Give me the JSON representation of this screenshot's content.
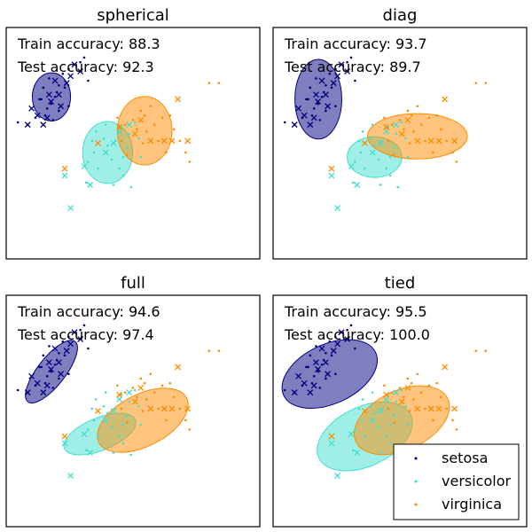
{
  "colors": {
    "setosa": "#000080",
    "versicolor": "#40e0d0",
    "virginica": "#ff8c00"
  },
  "legend": {
    "entries": [
      "setosa",
      "versicolor",
      "virginica"
    ],
    "placement": "lower-right"
  },
  "chart_data": [
    {
      "type": "scatter",
      "title": "spherical",
      "train_accuracy_label": "Train accuracy: 88.3",
      "test_accuracy_label": "Test accuracy: 92.3",
      "ellipses": [
        {
          "class": "setosa",
          "cx": 1.16,
          "cy": 3.5,
          "rx": 0.49,
          "ry": 0.52,
          "angle": 0
        },
        {
          "class": "versicolor",
          "cx": 2.6,
          "cy": 2.3,
          "rx": 0.64,
          "ry": 0.67,
          "angle": 0
        },
        {
          "class": "virginica",
          "cx": 3.55,
          "cy": 2.77,
          "rx": 0.7,
          "ry": 0.74,
          "angle": 0
        }
      ]
    },
    {
      "type": "scatter",
      "title": "diag",
      "train_accuracy_label": "Train accuracy: 93.7",
      "test_accuracy_label": "Test accuracy: 89.7",
      "ellipses": [
        {
          "class": "setosa",
          "cx": 1.16,
          "cy": 3.45,
          "rx": 0.6,
          "ry": 0.86,
          "angle": 0
        },
        {
          "class": "versicolor",
          "cx": 2.6,
          "cy": 2.2,
          "rx": 0.7,
          "ry": 0.44,
          "angle": 0
        },
        {
          "class": "virginica",
          "cx": 3.7,
          "cy": 2.65,
          "rx": 1.28,
          "ry": 0.49,
          "angle": 0
        }
      ]
    },
    {
      "type": "scatter",
      "title": "full",
      "train_accuracy_label": "Train accuracy: 94.6",
      "test_accuracy_label": "Test accuracy: 97.4",
      "ellipses": [
        {
          "class": "setosa",
          "cx": 1.16,
          "cy": 3.35,
          "rx": 0.98,
          "ry": 0.3,
          "angle": -52
        },
        {
          "class": "versicolor",
          "cx": 2.4,
          "cy": 2.0,
          "rx": 0.98,
          "ry": 0.35,
          "angle": -22
        },
        {
          "class": "virginica",
          "cx": 3.5,
          "cy": 2.3,
          "rx": 1.26,
          "ry": 0.56,
          "angle": -27
        }
      ]
    },
    {
      "type": "scatter",
      "title": "tied",
      "train_accuracy_label": "Train accuracy: 95.5",
      "test_accuracy_label": "Test accuracy: 100.0",
      "ellipses": [
        {
          "class": "setosa",
          "cx": 1.45,
          "cy": 3.3,
          "rx": 1.3,
          "ry": 0.64,
          "angle": -25
        },
        {
          "class": "versicolor",
          "cx": 2.35,
          "cy": 1.95,
          "rx": 1.3,
          "ry": 0.64,
          "angle": -25
        },
        {
          "class": "virginica",
          "cx": 3.3,
          "cy": 2.3,
          "rx": 1.3,
          "ry": 0.64,
          "angle": -25
        }
      ]
    }
  ],
  "points": {
    "train": {
      "setosa": [
        [
          0.85,
          3.45
        ],
        [
          1.0,
          3.1
        ],
        [
          1.05,
          3.25
        ],
        [
          1.1,
          3.9
        ],
        [
          1.2,
          3.0
        ],
        [
          1.25,
          3.5
        ],
        [
          1.3,
          3.6
        ],
        [
          1.35,
          3.75
        ],
        [
          1.45,
          4.0
        ],
        [
          1.5,
          3.7
        ],
        [
          1.6,
          4.1
        ],
        [
          0.55,
          2.9
        ],
        [
          0.75,
          3.05
        ],
        [
          1.15,
          3.35
        ],
        [
          0.95,
          3.7
        ],
        [
          1.35,
          3.2
        ],
        [
          1.6,
          3.3
        ],
        [
          1.9,
          4.25
        ],
        [
          2.0,
          4.35
        ],
        [
          2.1,
          3.85
        ],
        [
          0.3,
          2.95
        ],
        [
          0.9,
          3.45
        ]
      ],
      "versicolor": [
        [
          2.05,
          1.65
        ],
        [
          2.1,
          2.1
        ],
        [
          2.25,
          2.3
        ],
        [
          2.35,
          1.95
        ],
        [
          2.55,
          2.9
        ],
        [
          2.6,
          2.45
        ],
        [
          2.7,
          2.15
        ],
        [
          2.8,
          2.55
        ],
        [
          2.9,
          1.95
        ],
        [
          3.0,
          2.2
        ],
        [
          3.1,
          2.4
        ],
        [
          3.15,
          2.7
        ],
        [
          3.3,
          2.95
        ],
        [
          3.4,
          2.6
        ],
        [
          2.75,
          1.6
        ],
        [
          2.95,
          2.85
        ],
        [
          2.3,
          2.75
        ],
        [
          2.5,
          2.6
        ],
        [
          3.45,
          2.2
        ],
        [
          3.0,
          1.8
        ],
        [
          2.2,
          2.55
        ],
        [
          3.2,
          1.55
        ]
      ],
      "virginica": [
        [
          2.85,
          3.05
        ],
        [
          2.95,
          2.55
        ],
        [
          3.1,
          2.25
        ],
        [
          3.25,
          3.0
        ],
        [
          3.35,
          2.8
        ],
        [
          3.45,
          3.2
        ],
        [
          3.5,
          2.5
        ],
        [
          3.6,
          2.75
        ],
        [
          3.7,
          3.3
        ],
        [
          3.8,
          2.9
        ],
        [
          3.9,
          2.55
        ],
        [
          4.0,
          3.05
        ],
        [
          4.1,
          2.3
        ],
        [
          4.2,
          3.1
        ],
        [
          4.3,
          2.8
        ],
        [
          4.45,
          2.55
        ],
        [
          4.6,
          2.3
        ],
        [
          4.7,
          2.1
        ],
        [
          5.2,
          3.8
        ],
        [
          5.45,
          3.8
        ],
        [
          3.05,
          2.9
        ],
        [
          3.55,
          3.1
        ]
      ]
    },
    "test": {
      "setosa": [
        [
          0.55,
          2.9
        ],
        [
          0.65,
          3.25
        ],
        [
          0.8,
          3.1
        ],
        [
          0.95,
          2.9
        ],
        [
          1.05,
          3.05
        ],
        [
          1.1,
          3.55
        ],
        [
          1.15,
          3.4
        ],
        [
          1.25,
          3.85
        ],
        [
          1.35,
          3.55
        ],
        [
          1.4,
          3.3
        ],
        [
          1.55,
          3.8
        ],
        [
          1.65,
          3.95
        ],
        [
          1.75,
          4.2
        ],
        [
          1.9,
          4.05
        ]
      ],
      "versicolor": [
        [
          1.5,
          1.8
        ],
        [
          1.65,
          1.1
        ],
        [
          2.0,
          2.0
        ],
        [
          2.15,
          1.6
        ],
        [
          2.55,
          2.3
        ],
        [
          2.75,
          2.5
        ],
        [
          2.9,
          2.75
        ],
        [
          3.15,
          2.9
        ]
      ],
      "virginica": [
        [
          1.5,
          1.95
        ],
        [
          2.35,
          2.5
        ],
        [
          2.9,
          2.85
        ],
        [
          3.3,
          2.7
        ],
        [
          3.45,
          3.0
        ],
        [
          3.7,
          2.55
        ],
        [
          4.05,
          2.55
        ],
        [
          4.25,
          2.55
        ],
        [
          4.4,
          3.45
        ],
        [
          4.65,
          2.55
        ]
      ]
    }
  }
}
